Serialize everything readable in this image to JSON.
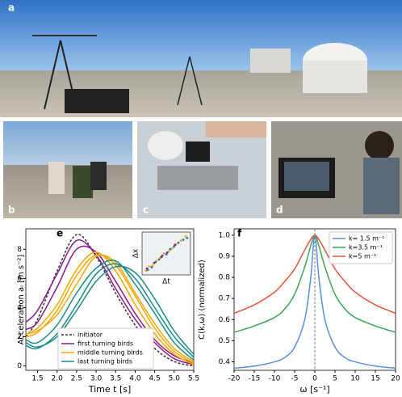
{
  "photos": [
    {
      "label": "a"
    },
    {
      "label": "b"
    },
    {
      "label": "c"
    },
    {
      "label": "d"
    }
  ],
  "chart_data": [
    {
      "type": "line",
      "panel": "e",
      "xlabel": "Time t [s]",
      "ylabel": "Acceleration aᵢ [m s⁻²]",
      "xlim": [
        1.2,
        5.5
      ],
      "ylim": [
        -0.3,
        9.4
      ],
      "xticks": [
        1.5,
        {
          "value": 2,
          "label": "2.0"
        },
        2.5,
        {
          "value": 3,
          "label": "3.0"
        },
        3.5,
        {
          "value": 4,
          "label": "4.0"
        },
        4.5,
        {
          "value": 5,
          "label": "5.0"
        },
        5.5
      ],
      "yticks": [
        0,
        2,
        4,
        6,
        8
      ],
      "x": [
        1.2,
        1.5,
        2.0,
        2.5,
        3.0,
        3.5,
        4.0,
        4.5,
        5.0,
        5.5
      ],
      "series": [
        {
          "name": "initiator",
          "color": "#333333",
          "dashed": true,
          "lines": [
            [
              2.0,
              3.2,
              6.5,
              9.0,
              7.5,
              5.0,
              2.8,
              1.2,
              0.3,
              0.0
            ]
          ]
        },
        {
          "name": "first turning birds",
          "color": "#8b1a8b",
          "lines": [
            [
              3.0,
              3.8,
              6.3,
              8.6,
              7.6,
              5.3,
              3.2,
              1.6,
              0.5,
              0.1
            ],
            [
              2.5,
              3.0,
              5.4,
              8.0,
              7.8,
              5.8,
              3.6,
              1.8,
              0.7,
              0.2
            ]
          ]
        },
        {
          "name": "middle turning birds",
          "color": "#f5a800",
          "lines": [
            [
              2.2,
              2.6,
              4.2,
              6.6,
              7.8,
              6.5,
              4.2,
              2.2,
              0.8,
              0.1
            ],
            [
              2.0,
              2.3,
              3.8,
              6.2,
              7.6,
              6.9,
              4.8,
              2.6,
              1.0,
              0.2
            ],
            [
              2.2,
              2.4,
              3.5,
              5.6,
              7.5,
              7.1,
              5.0,
              2.9,
              1.2,
              0.3
            ]
          ]
        },
        {
          "name": "last turning birds",
          "color": "#1a8a8a",
          "lines": [
            [
              1.8,
              1.6,
              2.8,
              5.0,
              6.7,
              7.2,
              5.6,
              3.6,
              1.6,
              0.4
            ],
            [
              1.4,
              1.2,
              2.2,
              4.2,
              6.3,
              7.0,
              6.0,
              4.0,
              2.0,
              0.6
            ],
            [
              1.6,
              1.3,
              2.0,
              3.8,
              5.8,
              6.8,
              6.4,
              4.6,
              2.4,
              0.8
            ]
          ]
        }
      ],
      "inset": {
        "type": "scatter",
        "xlabel": "Δt",
        "ylabel": "Δx",
        "xlim": [
          0,
          1
        ],
        "ylim": [
          0,
          1
        ],
        "series": [
          {
            "color": "#f5a800",
            "x": [
              0.08,
              0.15,
              0.22,
              0.3,
              0.38,
              0.45,
              0.55,
              0.62,
              0.7,
              0.8,
              0.9
            ],
            "y": [
              0.1,
              0.2,
              0.22,
              0.33,
              0.4,
              0.5,
              0.55,
              0.62,
              0.72,
              0.8,
              0.9
            ]
          },
          {
            "color": "#1f77b4",
            "x": [
              0.12,
              0.2,
              0.28,
              0.35,
              0.42,
              0.5,
              0.58,
              0.66,
              0.75,
              0.85,
              0.93
            ],
            "y": [
              0.12,
              0.18,
              0.3,
              0.36,
              0.45,
              0.48,
              0.6,
              0.66,
              0.75,
              0.82,
              0.86
            ]
          },
          {
            "color": "#8b1a8b",
            "x": [
              0.1,
              0.25,
              0.4,
              0.52,
              0.68
            ],
            "y": [
              0.15,
              0.28,
              0.42,
              0.52,
              0.7
            ]
          }
        ]
      }
    },
    {
      "type": "line",
      "panel": "f",
      "xlabel": "ω [s⁻¹]",
      "ylabel": "C(k,ω) (normalized)",
      "xlim": [
        -20,
        20
      ],
      "ylim": [
        0.36,
        1.03
      ],
      "xticks": [
        -20,
        -15,
        -10,
        -5,
        0,
        5,
        10,
        15,
        20
      ],
      "yticks": [
        0.4,
        0.5,
        0.6,
        0.7,
        0.8,
        0.9,
        {
          "value": 1,
          "label": "1.0"
        }
      ],
      "vline": 0,
      "x": [
        -20,
        -15,
        -10,
        -7.5,
        -5,
        -2.5,
        -1,
        0,
        1,
        2.5,
        5,
        7.5,
        10,
        15,
        20
      ],
      "series": [
        {
          "name": "k= 1.5 m⁻¹",
          "color": "#5b8fd9",
          "lines": [
            [
              0.37,
              0.38,
              0.4,
              0.42,
              0.47,
              0.6,
              0.8,
              1.0,
              0.8,
              0.6,
              0.47,
              0.42,
              0.4,
              0.38,
              0.37
            ]
          ]
        },
        {
          "name": "k=3.5 m⁻¹",
          "color": "#3aa655",
          "lines": [
            [
              0.54,
              0.57,
              0.61,
              0.65,
              0.72,
              0.85,
              0.95,
              1.0,
              0.95,
              0.85,
              0.72,
              0.65,
              0.61,
              0.57,
              0.54
            ]
          ]
        },
        {
          "name": "k=5 m⁻¹",
          "color": "#e8553a",
          "lines": [
            [
              0.63,
              0.67,
              0.73,
              0.78,
              0.84,
              0.93,
              0.98,
              1.0,
              0.98,
              0.93,
              0.84,
              0.78,
              0.73,
              0.67,
              0.63
            ]
          ]
        }
      ]
    }
  ]
}
